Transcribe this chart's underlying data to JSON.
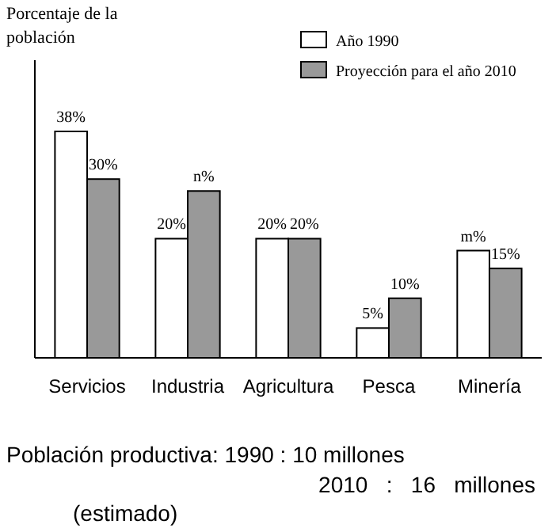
{
  "chart_data": {
    "type": "bar",
    "ylabel": "Porcentaje de la población",
    "categories": [
      "Servicios",
      "Industria",
      "Agricultura",
      "Pesca",
      "Minería"
    ],
    "series": [
      {
        "name": "Año 1990",
        "color": "#ffffff",
        "values": [
          38,
          20,
          20,
          5,
          18
        ],
        "value_labels": [
          "38%",
          "20%",
          "20%",
          "5%",
          "m%"
        ]
      },
      {
        "name": "Proyección para el año 2010",
        "color": "#999999",
        "values": [
          30,
          28,
          20,
          10,
          15
        ],
        "value_labels": [
          "30%",
          "n%",
          "20%",
          "10%",
          "15%"
        ]
      }
    ],
    "legend": "top right",
    "annotations": [
      "Población productiva: 1990 : 10 millones",
      "2010   :   16   millones",
      "(estimado)"
    ]
  }
}
